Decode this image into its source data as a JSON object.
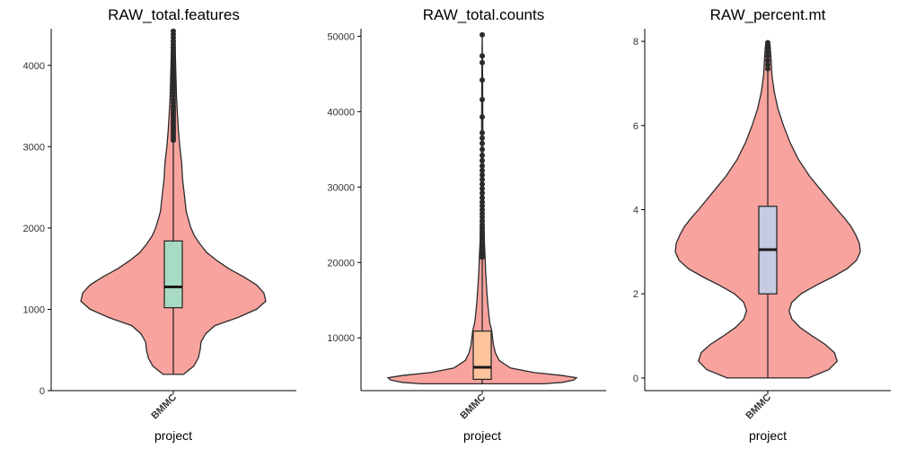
{
  "chart_data": [
    {
      "type": "violin",
      "title": "RAW_total.features",
      "xlabel": "project",
      "ylabel": "",
      "categories": [
        "BMMC"
      ],
      "ylim": [
        0,
        4450
      ],
      "yticks": [
        0,
        1000,
        2000,
        3000,
        4000
      ],
      "colors": {
        "violin": "#F8A39E",
        "box": "#A8DBC3"
      },
      "violin_profile": [
        [
          200,
          0.11
        ],
        [
          300,
          0.22
        ],
        [
          400,
          0.27
        ],
        [
          500,
          0.29
        ],
        [
          600,
          0.3
        ],
        [
          700,
          0.35
        ],
        [
          800,
          0.45
        ],
        [
          900,
          0.7
        ],
        [
          1000,
          0.9
        ],
        [
          1100,
          1.0
        ],
        [
          1200,
          0.98
        ],
        [
          1300,
          0.9
        ],
        [
          1400,
          0.76
        ],
        [
          1500,
          0.6
        ],
        [
          1600,
          0.47
        ],
        [
          1700,
          0.36
        ],
        [
          1800,
          0.29
        ],
        [
          1900,
          0.23
        ],
        [
          2000,
          0.19
        ],
        [
          2200,
          0.14
        ],
        [
          2400,
          0.12
        ],
        [
          2600,
          0.1
        ],
        [
          2800,
          0.09
        ],
        [
          3000,
          0.07
        ],
        [
          3200,
          0.055
        ],
        [
          3400,
          0.045
        ],
        [
          3600,
          0.035
        ],
        [
          3800,
          0.03
        ],
        [
          4000,
          0.025
        ],
        [
          4200,
          0.02
        ],
        [
          4400,
          0.015
        ],
        [
          4430,
          0
        ]
      ],
      "box": {
        "q1": 1020,
        "median": 1275,
        "q3": 1840,
        "whisker_low": 200,
        "whisker_high": 3060
      },
      "outliers": [
        3080,
        3110,
        3140,
        3170,
        3200,
        3230,
        3260,
        3290,
        3320,
        3350,
        3380,
        3410,
        3440,
        3470,
        3500,
        3540,
        3580,
        3620,
        3660,
        3700,
        3740,
        3780,
        3820,
        3860,
        3900,
        3940,
        3980,
        4020,
        4060,
        4100,
        4140,
        4180,
        4220,
        4260,
        4300,
        4340,
        4380,
        4420
      ]
    },
    {
      "type": "violin",
      "title": "RAW_total.counts",
      "xlabel": "project",
      "ylabel": "",
      "categories": [
        "BMMC"
      ],
      "ylim": [
        3000,
        51000
      ],
      "yticks": [
        10000,
        20000,
        30000,
        40000,
        50000
      ],
      "colors": {
        "violin": "#F8A39E",
        "box": "#FDC39C"
      },
      "violin_profile": [
        [
          3900,
          0.65
        ],
        [
          4100,
          0.85
        ],
        [
          4400,
          0.97
        ],
        [
          4700,
          1.0
        ],
        [
          5000,
          0.85
        ],
        [
          5400,
          0.55
        ],
        [
          6000,
          0.3
        ],
        [
          7000,
          0.18
        ],
        [
          8000,
          0.14
        ],
        [
          9000,
          0.12
        ],
        [
          10000,
          0.11
        ],
        [
          11000,
          0.1
        ],
        [
          12000,
          0.08
        ],
        [
          13000,
          0.07
        ],
        [
          15000,
          0.055
        ],
        [
          17000,
          0.045
        ],
        [
          19000,
          0.035
        ],
        [
          21000,
          0.03
        ],
        [
          23000,
          0.022
        ],
        [
          26000,
          0.016
        ],
        [
          30000,
          0.012
        ],
        [
          35000,
          0.008
        ],
        [
          40000,
          0.006
        ],
        [
          45000,
          0.004
        ],
        [
          50200,
          0
        ]
      ],
      "box": {
        "q1": 4500,
        "median": 6100,
        "q3": 10900,
        "whisker_low": 3900,
        "whisker_high": 20500
      },
      "outliers": [
        20700,
        20900,
        21100,
        21300,
        21500,
        21700,
        21900,
        22100,
        22300,
        22600,
        22900,
        23200,
        23500,
        23800,
        24200,
        24600,
        25000,
        25500,
        26000,
        26500,
        27000,
        27500,
        28000,
        28600,
        29200,
        29800,
        30400,
        31000,
        31600,
        32200,
        32800,
        33500,
        34200,
        35000,
        35800,
        36500,
        37200,
        39300,
        41600,
        44200,
        46500,
        47400,
        50200
      ]
    },
    {
      "type": "violin",
      "title": "RAW_percent.mt",
      "xlabel": "project",
      "ylabel": "",
      "categories": [
        "BMMC"
      ],
      "ylim": [
        -0.3,
        8.3
      ],
      "yticks": [
        0,
        2,
        4,
        6,
        8
      ],
      "colors": {
        "violin": "#F8A39E",
        "box": "#C5CBE3"
      },
      "violin_profile": [
        [
          0.0,
          0.44
        ],
        [
          0.2,
          0.66
        ],
        [
          0.4,
          0.75
        ],
        [
          0.6,
          0.72
        ],
        [
          0.8,
          0.62
        ],
        [
          1.0,
          0.48
        ],
        [
          1.2,
          0.35
        ],
        [
          1.4,
          0.26
        ],
        [
          1.6,
          0.23
        ],
        [
          1.8,
          0.26
        ],
        [
          2.0,
          0.36
        ],
        [
          2.2,
          0.52
        ],
        [
          2.4,
          0.7
        ],
        [
          2.6,
          0.86
        ],
        [
          2.8,
          0.96
        ],
        [
          3.0,
          1.0
        ],
        [
          3.2,
          0.99
        ],
        [
          3.4,
          0.95
        ],
        [
          3.6,
          0.9
        ],
        [
          3.8,
          0.83
        ],
        [
          4.0,
          0.75
        ],
        [
          4.4,
          0.6
        ],
        [
          4.8,
          0.45
        ],
        [
          5.2,
          0.33
        ],
        [
          5.6,
          0.24
        ],
        [
          6.0,
          0.17
        ],
        [
          6.4,
          0.11
        ],
        [
          6.8,
          0.07
        ],
        [
          7.2,
          0.045
        ],
        [
          7.6,
          0.035
        ],
        [
          7.9,
          0.025
        ],
        [
          8.0,
          0
        ]
      ],
      "box": {
        "q1": 2.0,
        "median": 3.05,
        "q3": 4.08,
        "whisker_low": 0.0,
        "whisker_high": 7.3
      },
      "outliers": [
        7.35,
        7.45,
        7.55,
        7.65,
        7.75,
        7.85,
        7.92,
        7.97
      ]
    }
  ]
}
